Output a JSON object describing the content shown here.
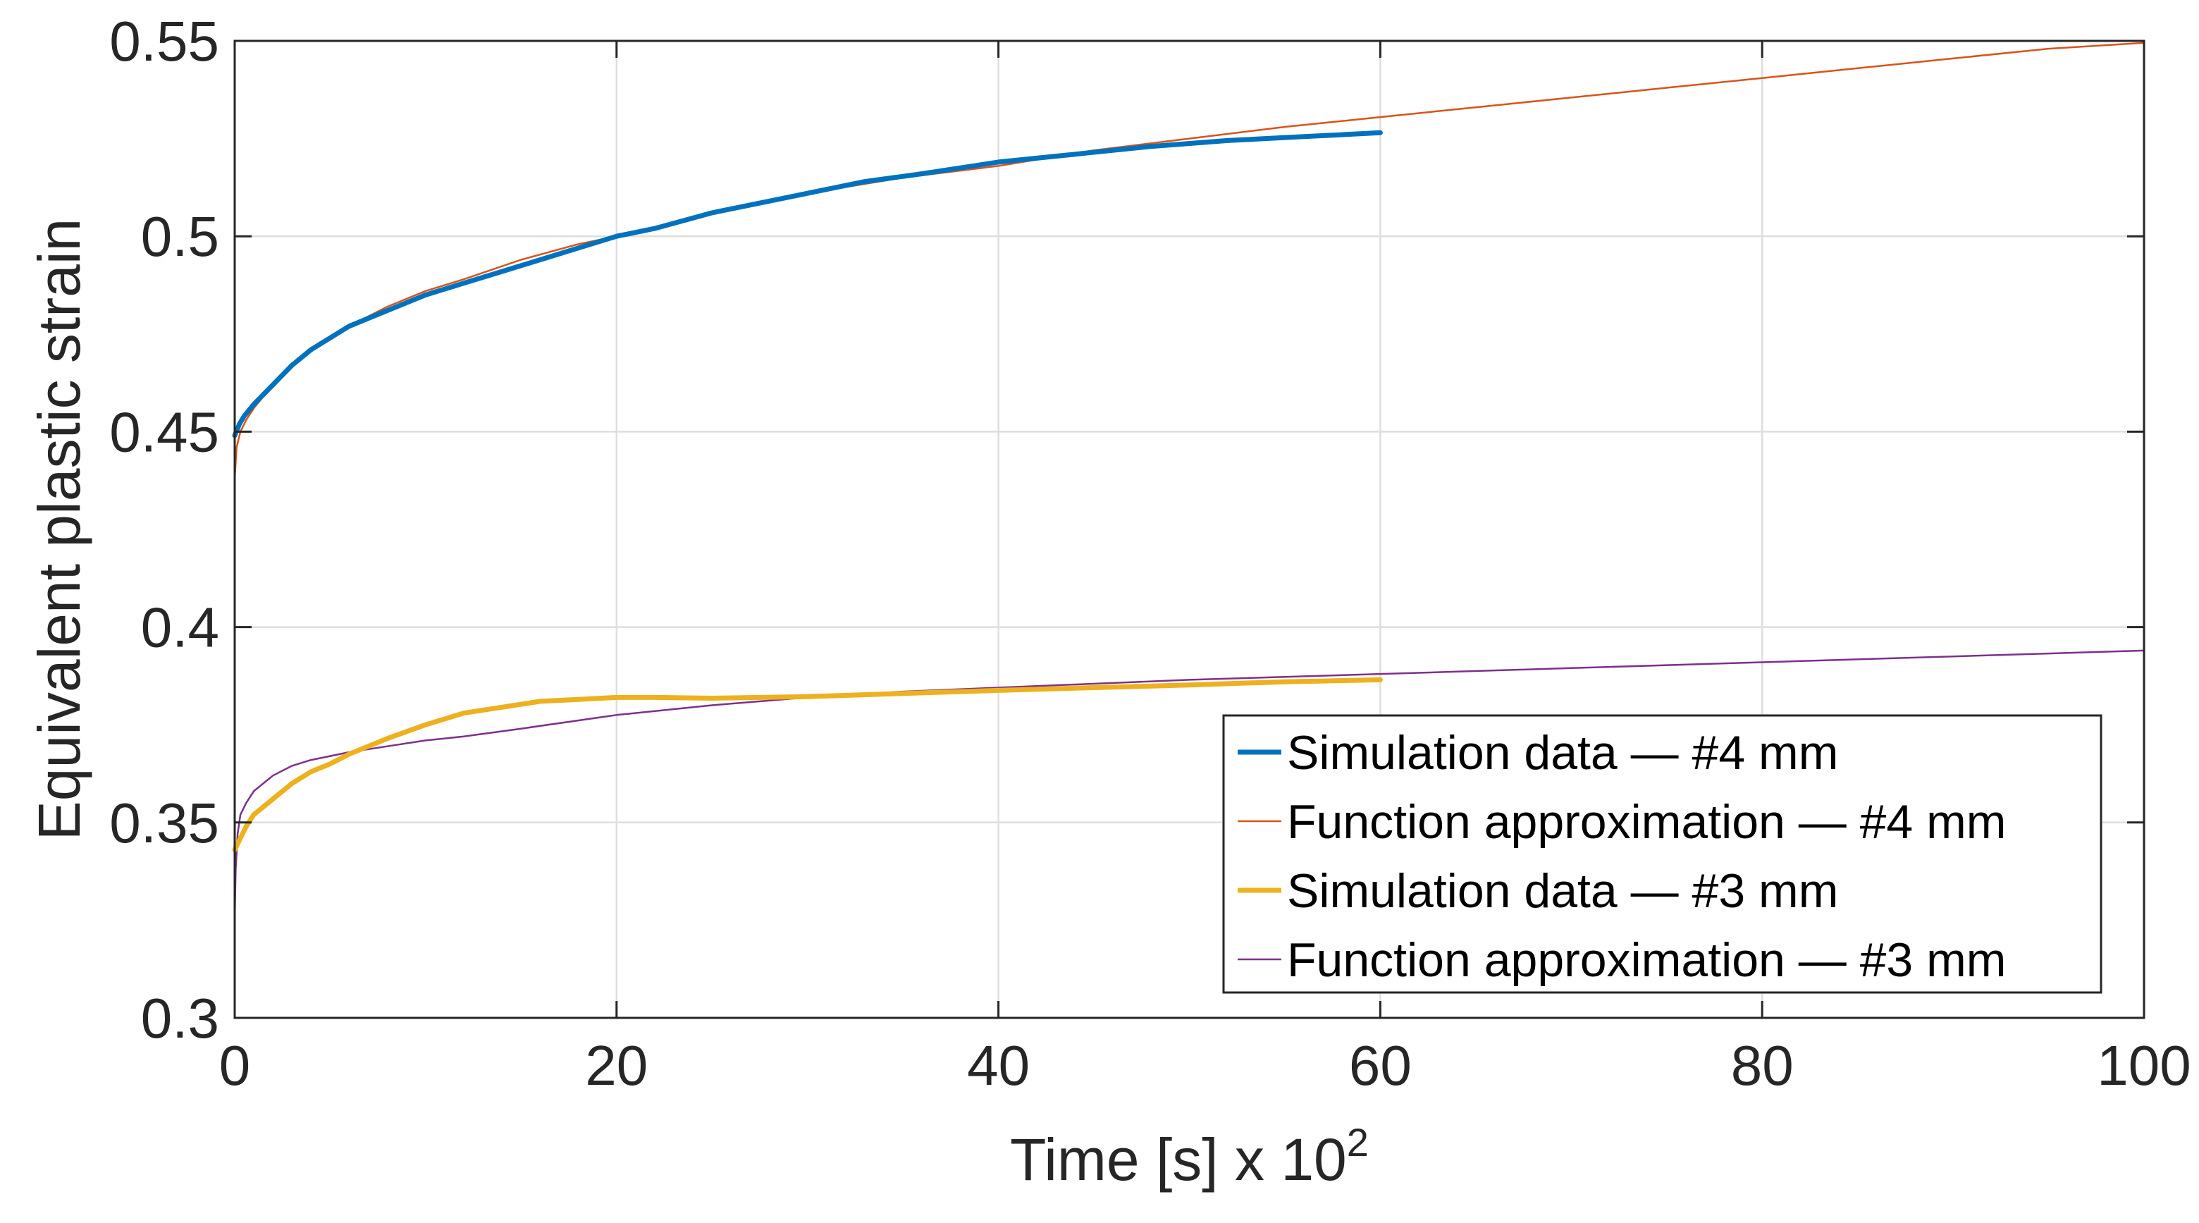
{
  "chart_data": {
    "type": "line",
    "title": "",
    "xlabel": "Time [s] x 10",
    "xlabel_superscript": "2",
    "ylabel": "Equivalent plastic strain",
    "xlim": [
      0,
      100
    ],
    "ylim": [
      0.3,
      0.55
    ],
    "x_ticks": [
      0,
      20,
      40,
      60,
      80,
      100
    ],
    "x_tick_labels": [
      "0",
      "20",
      "40",
      "60",
      "80",
      "100"
    ],
    "y_ticks": [
      0.3,
      0.35,
      0.4,
      0.45,
      0.5,
      0.55
    ],
    "y_tick_labels": [
      "0.3",
      "0.35",
      "0.4",
      "0.45",
      "0.5",
      "0.55"
    ],
    "grid": true,
    "legend_position": "bottom-right",
    "series": [
      {
        "name": "Simulation data — #4 mm",
        "color": "#0072BD",
        "line_weight": "thick",
        "x": [
          0,
          0.25,
          0.5,
          1,
          2,
          3,
          4,
          5,
          6,
          8,
          10,
          12,
          14,
          16,
          18,
          20,
          22,
          25,
          28,
          30,
          33,
          36,
          40,
          44,
          48,
          52,
          56,
          60
        ],
        "y": [
          0.449,
          0.452,
          0.454,
          0.457,
          0.462,
          0.467,
          0.471,
          0.474,
          0.477,
          0.481,
          0.485,
          0.488,
          0.491,
          0.494,
          0.497,
          0.5,
          0.502,
          0.506,
          0.509,
          0.511,
          0.514,
          0.516,
          0.519,
          0.521,
          0.523,
          0.5245,
          0.5255,
          0.5265
        ]
      },
      {
        "name": "Function approximation — #4 mm",
        "color": "#D95319",
        "line_weight": "thin",
        "x": [
          0,
          0.1,
          0.3,
          0.6,
          1,
          2,
          3,
          4,
          5,
          6,
          8,
          10,
          12,
          15,
          18,
          20,
          25,
          30,
          35,
          40,
          45,
          50,
          55,
          60,
          65,
          70,
          75,
          80,
          85,
          90,
          95,
          100
        ],
        "y": [
          0.438,
          0.446,
          0.45,
          0.453,
          0.456,
          0.462,
          0.467,
          0.471,
          0.474,
          0.477,
          0.482,
          0.486,
          0.489,
          0.494,
          0.498,
          0.5,
          0.506,
          0.511,
          0.515,
          0.518,
          0.522,
          0.525,
          0.528,
          0.5305,
          0.533,
          0.5355,
          0.538,
          0.5405,
          0.543,
          0.5455,
          0.548,
          0.5495
        ]
      },
      {
        "name": "Simulation data — #3 mm",
        "color": "#EDB120",
        "line_weight": "thick",
        "x": [
          0,
          0.3,
          0.6,
          1,
          2,
          3,
          4,
          5,
          6,
          8,
          10,
          12,
          14,
          16,
          18,
          20,
          22,
          25,
          30,
          35,
          40,
          45,
          50,
          55,
          60
        ],
        "y": [
          0.343,
          0.346,
          0.349,
          0.352,
          0.356,
          0.36,
          0.363,
          0.365,
          0.3675,
          0.3715,
          0.375,
          0.378,
          0.3795,
          0.381,
          0.3815,
          0.382,
          0.382,
          0.3818,
          0.3822,
          0.383,
          0.3838,
          0.3845,
          0.3852,
          0.386,
          0.3865
        ]
      },
      {
        "name": "Function approximation — #3 mm",
        "color": "#7E2F8E",
        "line_weight": "thin",
        "x": [
          0,
          0.05,
          0.15,
          0.3,
          0.6,
          1,
          2,
          3,
          4,
          5,
          6,
          8,
          10,
          12,
          15,
          20,
          25,
          30,
          35,
          40,
          50,
          60,
          70,
          80,
          90,
          100
        ],
        "y": [
          0.325,
          0.338,
          0.347,
          0.352,
          0.355,
          0.358,
          0.362,
          0.3645,
          0.366,
          0.367,
          0.368,
          0.3695,
          0.371,
          0.372,
          0.374,
          0.3775,
          0.38,
          0.382,
          0.3835,
          0.3845,
          0.3865,
          0.388,
          0.3895,
          0.391,
          0.3925,
          0.394
        ]
      }
    ]
  }
}
